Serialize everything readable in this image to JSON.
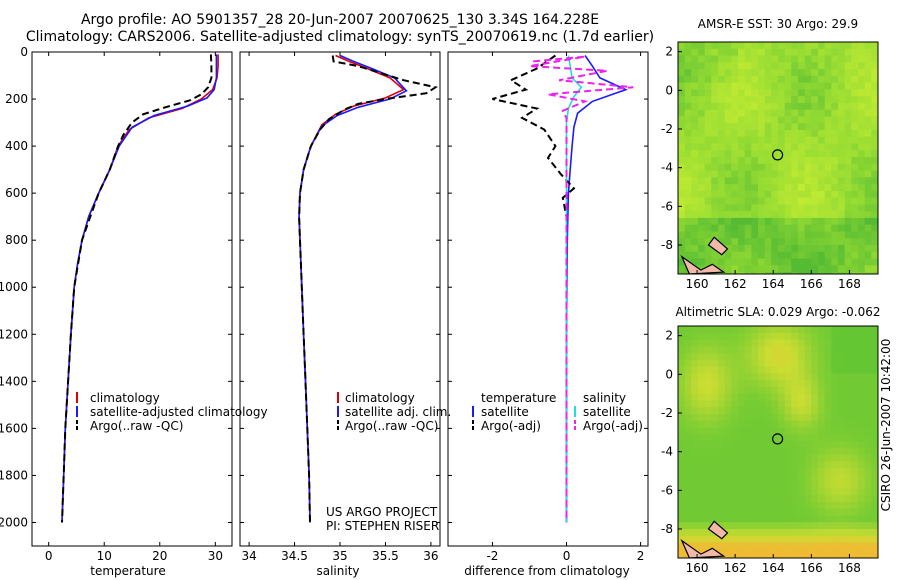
{
  "header": {
    "title_line1": "Argo profile: AO 5901357_28 20-Jun-2007 20070625_130 3.34S 164.228E",
    "title_line2": "Climatology: CARS2006. Satellite-adjusted climatology: synTS_20070619.nc (1.7d earlier)"
  },
  "sidebar_stamp": "CSIRO 26-Jun-2007 10:42:00",
  "colors": {
    "climatology": "#e00000",
    "satellite": "#1a1aff",
    "argo": "#000000",
    "salinity_satellite": "#22dddd",
    "salinity_argo": "#ee22ee",
    "map_green": "#66cc33",
    "map_yellow": "#ccee33",
    "land": "#f2b8a8"
  },
  "chart_data": [
    {
      "type": "line",
      "panel": "temperature",
      "xlabel": "temperature",
      "xlim": [
        -3,
        33
      ],
      "ylim": [
        2100,
        0
      ],
      "xticks": [
        "0",
        "10",
        "20",
        "30"
      ],
      "yticks": [
        "0",
        "200",
        "400",
        "600",
        "800",
        "1000",
        "1200",
        "1400",
        "1600",
        "1800",
        "2000"
      ],
      "legend": [
        "climatology",
        "satellite-adjusted climatology",
        "Argo(..raw -QC)"
      ],
      "series": [
        {
          "name": "climatology",
          "style": "solid",
          "color": "#e00000",
          "points": [
            [
              30.5,
              10
            ],
            [
              30.5,
              60
            ],
            [
              30.3,
              110
            ],
            [
              29.5,
              160
            ],
            [
              27.5,
              200
            ],
            [
              24,
              240
            ],
            [
              18,
              280
            ],
            [
              14.5,
              330
            ],
            [
              12.5,
              400
            ],
            [
              11,
              500
            ],
            [
              9,
              600
            ],
            [
              7.2,
              700
            ],
            [
              6,
              800
            ],
            [
              5.2,
              900
            ],
            [
              4.6,
              1000
            ],
            [
              4,
              1200
            ],
            [
              3.5,
              1400
            ],
            [
              3,
              1600
            ],
            [
              2.7,
              1800
            ],
            [
              2.4,
              2000
            ]
          ]
        },
        {
          "name": "satellite-adjusted climatology",
          "style": "solid",
          "color": "#1a1aff",
          "points": [
            [
              30.2,
              10
            ],
            [
              30.2,
              60
            ],
            [
              30.2,
              110
            ],
            [
              29.8,
              160
            ],
            [
              28.5,
              195
            ],
            [
              25,
              230
            ],
            [
              19,
              270
            ],
            [
              15,
              320
            ],
            [
              12.7,
              400
            ],
            [
              11,
              500
            ],
            [
              9,
              600
            ],
            [
              7.2,
              700
            ],
            [
              6,
              800
            ],
            [
              5.2,
              900
            ],
            [
              4.6,
              1000
            ],
            [
              4,
              1200
            ],
            [
              3.5,
              1400
            ],
            [
              3,
              1600
            ],
            [
              2.7,
              1800
            ],
            [
              2.4,
              2000
            ]
          ]
        },
        {
          "name": "Argo(..raw -QC)",
          "style": "dashed",
          "color": "#000000",
          "points": [
            [
              29.2,
              10
            ],
            [
              29.3,
              60
            ],
            [
              29.3,
              110
            ],
            [
              28.7,
              150
            ],
            [
              27.5,
              180
            ],
            [
              25.5,
              205
            ],
            [
              21,
              235
            ],
            [
              17,
              265
            ],
            [
              15,
              300
            ],
            [
              13.5,
              350
            ],
            [
              12.5,
              400
            ],
            [
              11,
              500
            ],
            [
              9,
              600
            ],
            [
              7.5,
              700
            ],
            [
              6,
              800
            ],
            [
              5.3,
              900
            ],
            [
              4.6,
              1000
            ],
            [
              4,
              1200
            ],
            [
              3.5,
              1400
            ],
            [
              3,
              1600
            ],
            [
              2.7,
              1800
            ],
            [
              2.4,
              2000
            ]
          ]
        }
      ]
    },
    {
      "type": "line",
      "panel": "salinity",
      "xlabel": "salinity",
      "xlim": [
        33.9,
        36.1
      ],
      "ylim": [
        2100,
        0
      ],
      "xticks": [
        "34",
        "34.5",
        "35",
        "35.5",
        "36"
      ],
      "legend": [
        "climatology",
        "satellite adj. clim.",
        "Argo(..raw -QC)"
      ],
      "annotations": [
        "US ARGO PROJECT",
        "PI: STEPHEN RISER"
      ],
      "series": [
        {
          "name": "climatology",
          "style": "solid",
          "color": "#e00000",
          "points": [
            [
              34.95,
              15
            ],
            [
              35.1,
              40
            ],
            [
              35.3,
              70
            ],
            [
              35.55,
              110
            ],
            [
              35.7,
              160
            ],
            [
              35.5,
              195
            ],
            [
              35.15,
              230
            ],
            [
              34.95,
              265
            ],
            [
              34.8,
              310
            ],
            [
              34.68,
              400
            ],
            [
              34.6,
              500
            ],
            [
              34.56,
              600
            ],
            [
              34.55,
              700
            ],
            [
              34.56,
              800
            ],
            [
              34.58,
              1000
            ],
            [
              34.6,
              1200
            ],
            [
              34.62,
              1400
            ],
            [
              34.64,
              1600
            ],
            [
              34.66,
              1800
            ],
            [
              34.67,
              2000
            ]
          ]
        },
        {
          "name": "satellite adj. clim.",
          "style": "solid",
          "color": "#1a1aff",
          "points": [
            [
              35.0,
              15
            ],
            [
              35.15,
              40
            ],
            [
              35.35,
              70
            ],
            [
              35.6,
              110
            ],
            [
              35.73,
              165
            ],
            [
              35.55,
              200
            ],
            [
              35.2,
              235
            ],
            [
              34.97,
              270
            ],
            [
              34.8,
              315
            ],
            [
              34.68,
              400
            ],
            [
              34.6,
              500
            ],
            [
              34.56,
              600
            ],
            [
              34.55,
              700
            ],
            [
              34.56,
              800
            ],
            [
              34.58,
              1000
            ],
            [
              34.6,
              1200
            ],
            [
              34.62,
              1400
            ],
            [
              34.64,
              1600
            ],
            [
              34.66,
              1800
            ],
            [
              34.67,
              2000
            ]
          ]
        },
        {
          "name": "Argo(..raw -QC)",
          "style": "dashed",
          "color": "#000000",
          "points": [
            [
              34.92,
              15
            ],
            [
              34.93,
              40
            ],
            [
              35.2,
              60
            ],
            [
              35.45,
              90
            ],
            [
              35.7,
              120
            ],
            [
              36.05,
              150
            ],
            [
              35.95,
              175
            ],
            [
              35.5,
              200
            ],
            [
              35.2,
              220
            ],
            [
              35.05,
              245
            ],
            [
              34.88,
              285
            ],
            [
              34.78,
              330
            ],
            [
              34.68,
              400
            ],
            [
              34.6,
              500
            ],
            [
              34.56,
              600
            ],
            [
              34.55,
              700
            ],
            [
              34.56,
              800
            ],
            [
              34.58,
              1000
            ],
            [
              34.6,
              1200
            ],
            [
              34.62,
              1400
            ],
            [
              34.64,
              1600
            ],
            [
              34.66,
              1800
            ],
            [
              34.67,
              2000
            ]
          ]
        }
      ]
    },
    {
      "type": "line",
      "panel": "difference",
      "xlabel": "difference from climatology",
      "xlim": [
        -3.2,
        2.2
      ],
      "ylim": [
        2100,
        0
      ],
      "xticks": [
        "-2",
        "0",
        "2"
      ],
      "legend_groups": [
        {
          "heading": "temperature",
          "entries": [
            "satellite",
            "Argo(-adj)"
          ]
        },
        {
          "heading": "salinity",
          "entries": [
            "satellite",
            "Argo(-adj)"
          ]
        }
      ],
      "series": [
        {
          "name": "temperature satellite",
          "style": "solid",
          "color": "#1a1aff",
          "points": [
            [
              0.5,
              15
            ],
            [
              0.7,
              60
            ],
            [
              0.9,
              110
            ],
            [
              1.6,
              160
            ],
            [
              0.7,
              210
            ],
            [
              0.3,
              260
            ],
            [
              0.2,
              320
            ],
            [
              0.15,
              400
            ],
            [
              0.1,
              500
            ],
            [
              0.05,
              600
            ],
            [
              0.02,
              800
            ],
            [
              0,
              1200
            ],
            [
              0,
              2000
            ]
          ]
        },
        {
          "name": "temperature Argo(-adj)",
          "style": "dashed",
          "color": "#000000",
          "points": [
            [
              -0.3,
              15
            ],
            [
              -0.8,
              70
            ],
            [
              -1.5,
              120
            ],
            [
              -1.1,
              160
            ],
            [
              -2.0,
              200
            ],
            [
              -0.8,
              240
            ],
            [
              -1.2,
              280
            ],
            [
              -0.6,
              330
            ],
            [
              -0.3,
              400
            ],
            [
              -0.5,
              450
            ],
            [
              -0.15,
              520
            ],
            [
              0.2,
              580
            ],
            [
              -0.1,
              620
            ],
            [
              0,
              700
            ],
            [
              0,
              800
            ],
            [
              0,
              2000
            ]
          ]
        },
        {
          "name": "salinity satellite",
          "style": "solid",
          "color": "#22dddd",
          "points": [
            [
              0.05,
              15
            ],
            [
              0.1,
              60
            ],
            [
              0.15,
              110
            ],
            [
              0.4,
              150
            ],
            [
              0.2,
              190
            ],
            [
              0.05,
              240
            ],
            [
              0,
              300
            ],
            [
              0,
              500
            ],
            [
              0,
              2000
            ]
          ]
        },
        {
          "name": "salinity Argo(-adj)",
          "style": "dashed",
          "color": "#ee22ee",
          "points": [
            [
              -0.9,
              40
            ],
            [
              0.5,
              20
            ],
            [
              -1.0,
              60
            ],
            [
              1.1,
              80
            ],
            [
              -0.2,
              120
            ],
            [
              1.8,
              150
            ],
            [
              -0.5,
              180
            ],
            [
              0.5,
              210
            ],
            [
              -0.1,
              250
            ],
            [
              0,
              280
            ],
            [
              0,
              500
            ],
            [
              0,
              2000
            ]
          ]
        }
      ]
    },
    {
      "type": "heatmap",
      "panel": "sst-map",
      "title": "AMSR-E SST: 30 Argo: 29.9",
      "xlim": [
        159,
        169.5
      ],
      "ylim": [
        -9.5,
        2.5
      ],
      "xticks": [
        "160",
        "162",
        "164",
        "166",
        "168"
      ],
      "yticks": [
        "2",
        "0",
        "-2",
        "-4",
        "-6",
        "-8"
      ],
      "float_position": [
        164.228,
        -3.34
      ]
    },
    {
      "type": "heatmap",
      "panel": "sla-map",
      "title": "Altimetric SLA: 0.029 Argo: -0.062",
      "xlim": [
        159,
        169.5
      ],
      "ylim": [
        -9.5,
        2.5
      ],
      "xticks": [
        "160",
        "162",
        "164",
        "166",
        "168"
      ],
      "yticks": [
        "2",
        "0",
        "-2",
        "-4",
        "-6",
        "-8"
      ],
      "float_position": [
        164.228,
        -3.34
      ]
    }
  ]
}
